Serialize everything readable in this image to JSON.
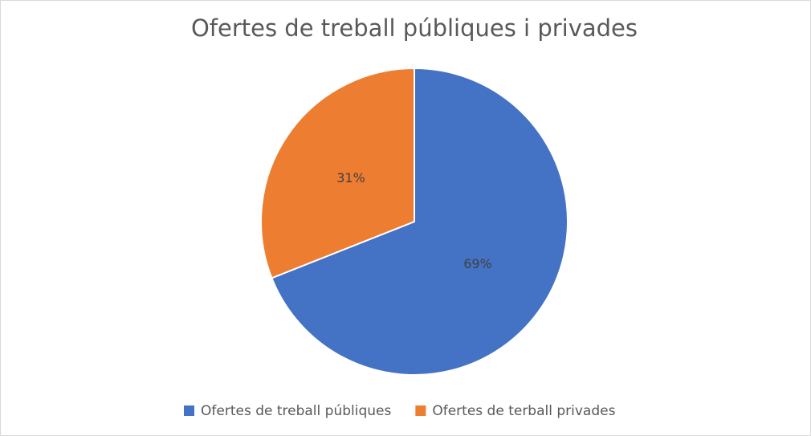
{
  "chart_data": {
    "type": "pie",
    "title": "Ofertes de treball públiques i privades",
    "categories": [
      "Ofertes de treball públiques",
      "Ofertes de terball privades"
    ],
    "values": [
      69,
      31
    ],
    "value_labels": [
      "69%",
      "31%"
    ],
    "colors": [
      "#4472c4",
      "#ed7d31"
    ],
    "legend": "bottom"
  }
}
